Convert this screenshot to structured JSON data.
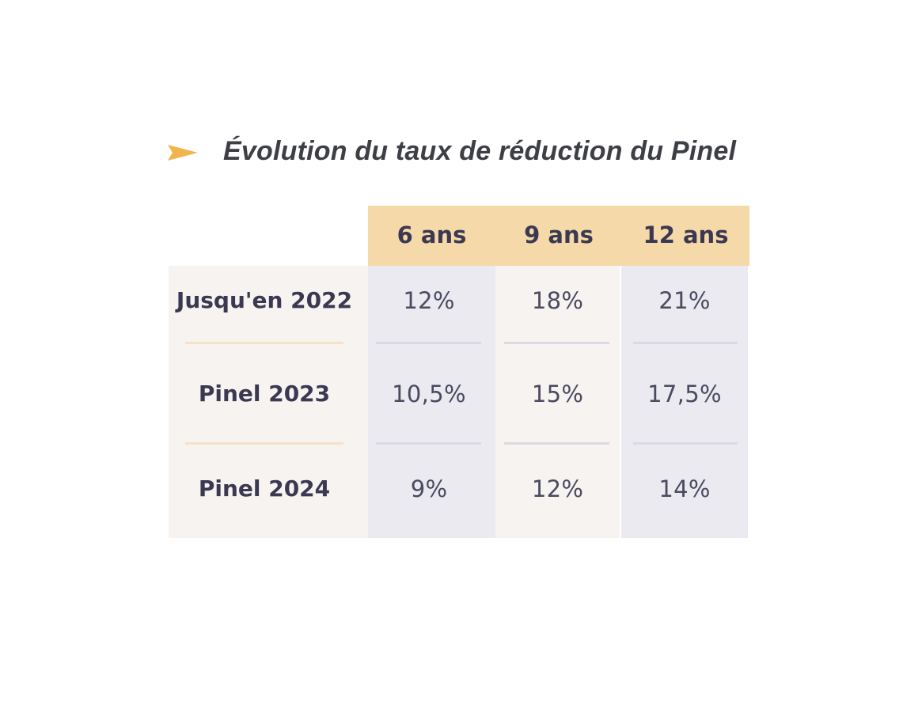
{
  "title": "Évolution du taux de réduction du Pinel",
  "colors": {
    "accent": "#f0b54d",
    "header_bg": "#f6d9a8",
    "text": "#3b3952"
  },
  "table": {
    "columns": [
      "6 ans",
      "9 ans",
      "12 ans"
    ],
    "rows": [
      {
        "label": "Jusqu'en 2022",
        "values": [
          "12%",
          "18%",
          "21%"
        ]
      },
      {
        "label": "Pinel 2023",
        "values": [
          "10,5%",
          "15%",
          "17,5%"
        ]
      },
      {
        "label": "Pinel 2024",
        "values": [
          "9%",
          "12%",
          "14%"
        ]
      }
    ]
  }
}
